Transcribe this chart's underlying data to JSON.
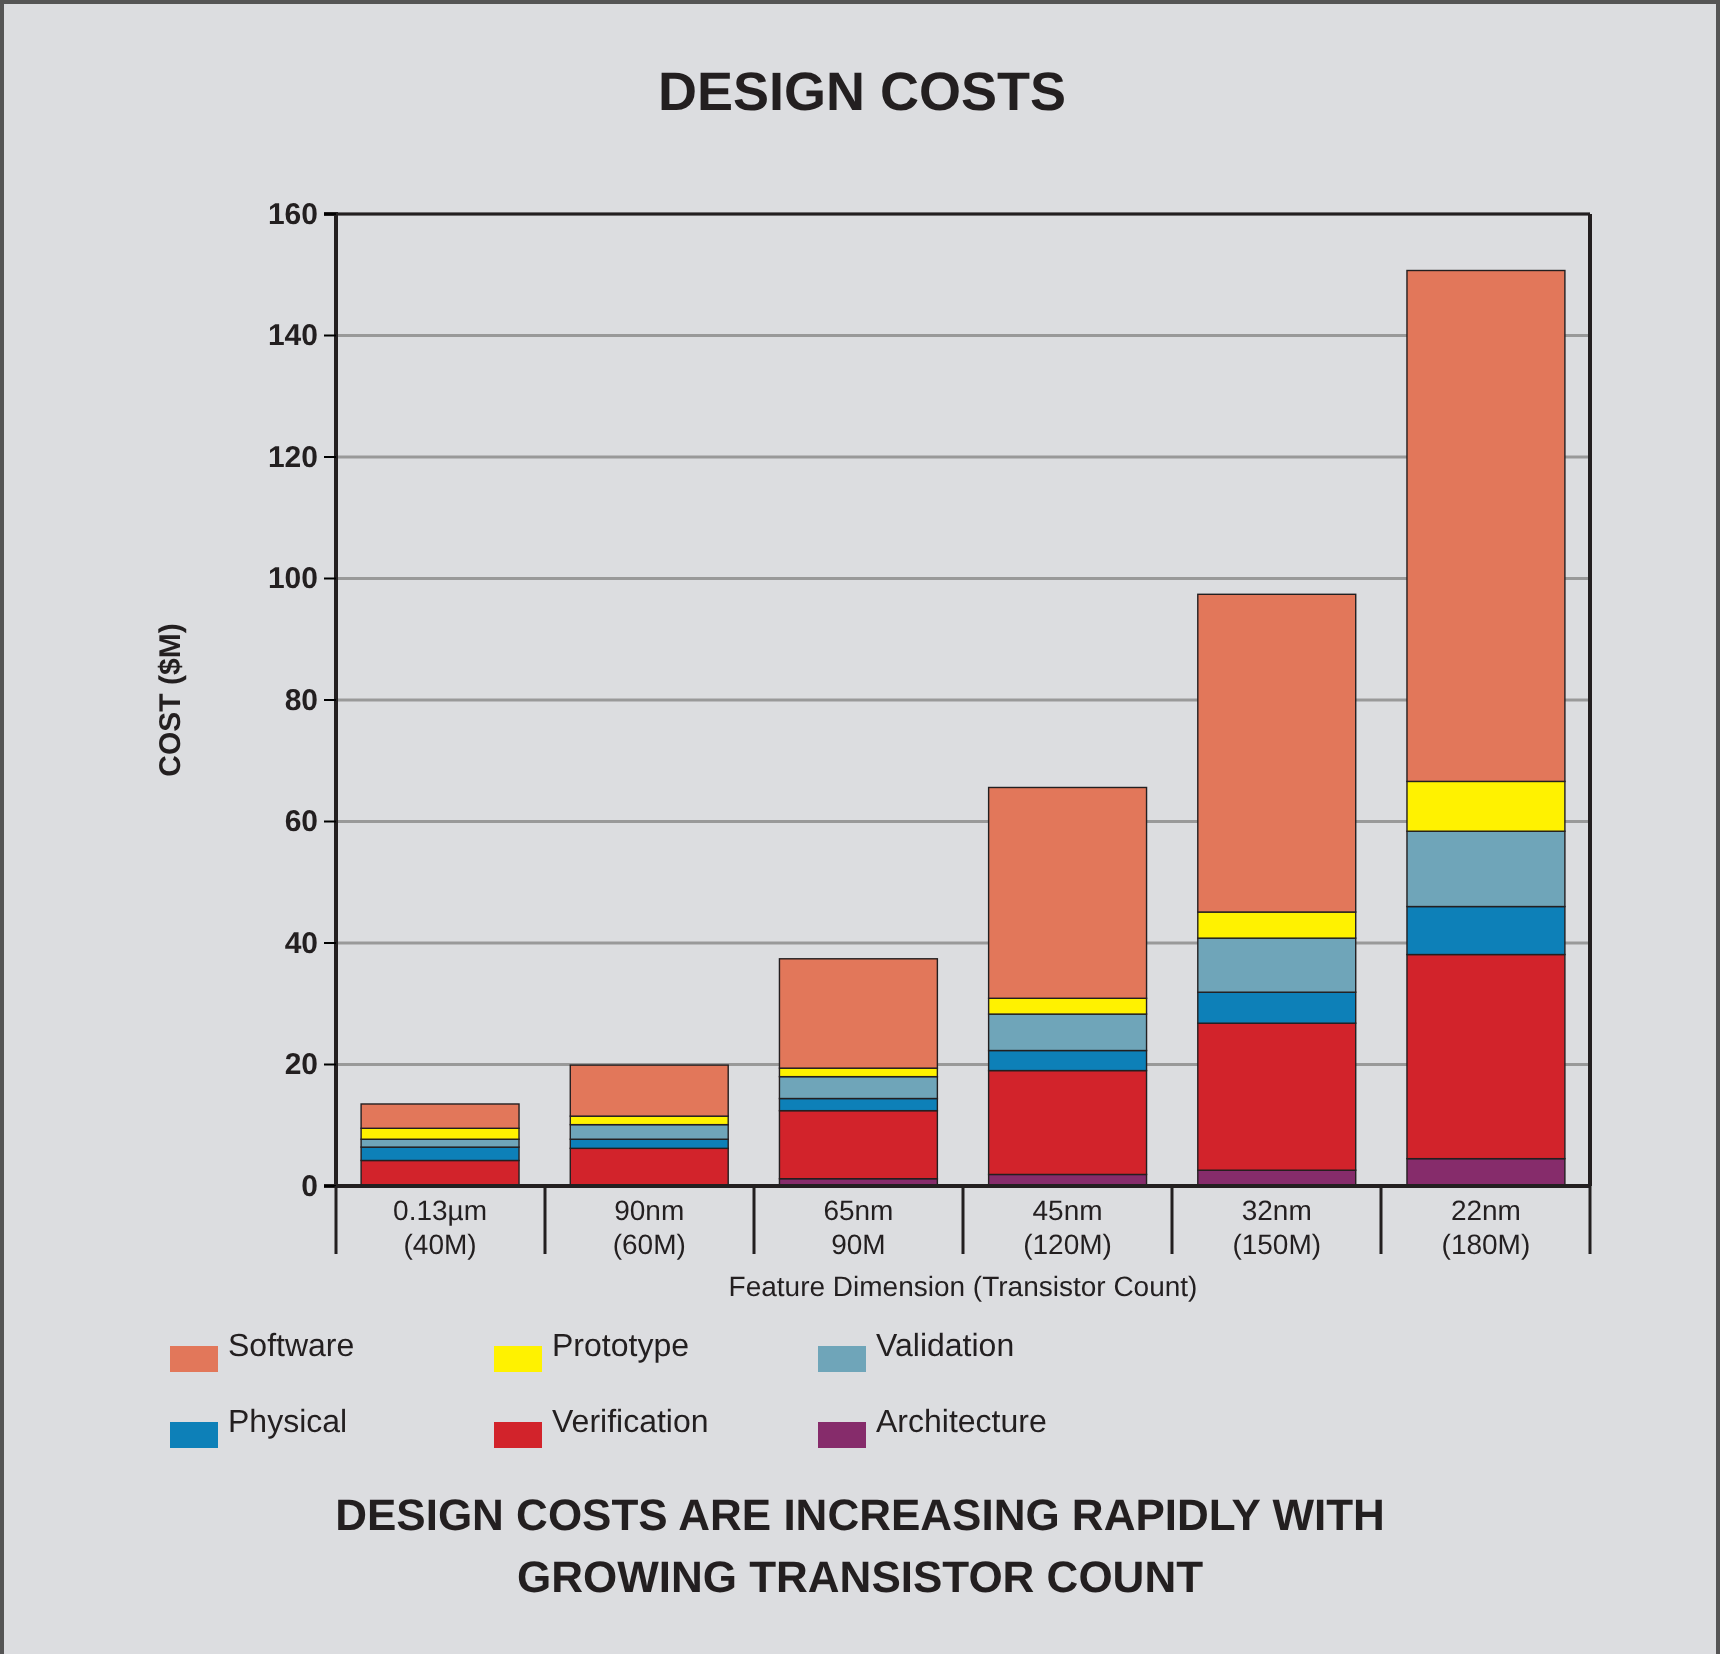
{
  "chart_data": {
    "type": "bar",
    "title": "DESIGN COSTS",
    "xlabel": "Feature Dimension (Transistor Count)",
    "ylabel": "COST ($M)",
    "categories": [
      "0.13µm\n(40M)",
      "90nm\n(60M)",
      "65nm\n90M",
      "45nm\n(120M)",
      "32nm\n(150M)",
      "22nm\n(180M)"
    ],
    "stacked": true,
    "series": [
      {
        "name": "Architecture",
        "color": "#862c6b",
        "values": [
          null,
          null,
          1.2,
          1.9,
          2.6,
          4.5
        ]
      },
      {
        "name": "Verification",
        "color": "#d2232b",
        "values": [
          4.2,
          6.2,
          11.2,
          17.1,
          24.2,
          33.6
        ]
      },
      {
        "name": "Physical",
        "color": "#0d80b8",
        "values": [
          2.2,
          1.5,
          2.0,
          3.3,
          5.1,
          7.9
        ]
      },
      {
        "name": "Validation",
        "color": "#6fa5b9",
        "values": [
          1.3,
          2.4,
          3.6,
          6.0,
          8.9,
          12.4
        ]
      },
      {
        "name": "Prototype",
        "color": "#fff200",
        "values": [
          1.8,
          1.4,
          1.4,
          2.6,
          4.3,
          8.2
        ]
      },
      {
        "name": "Software",
        "color": "#e2775a",
        "values": [
          4.0,
          8.4,
          18.0,
          34.7,
          52.3,
          84.1
        ]
      }
    ],
    "ylim": [
      0,
      160
    ],
    "yticks": [
      0,
      20,
      40,
      60,
      80,
      100,
      120,
      140,
      160
    ],
    "grid": "y",
    "legend": "bottom",
    "annotations": [
      "DESIGN COSTS ARE INCREASING RAPIDLY WITH GROWING TRANSISTOR COUNT"
    ]
  }
}
